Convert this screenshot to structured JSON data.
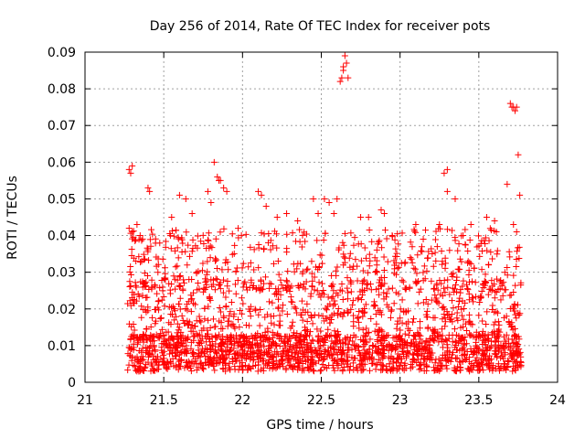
{
  "chart_data": {
    "type": "scatter",
    "title": "Day 256 of 2014, Rate Of TEC Index for receiver pots",
    "xlabel": "GPS time / hours",
    "ylabel": "ROTI / TECUs",
    "xlim": [
      21,
      24
    ],
    "ylim": [
      0,
      0.09
    ],
    "xticks": [
      "21",
      "21.5",
      "22",
      "22.5",
      "23",
      "23.5",
      "24"
    ],
    "yticks": [
      "0",
      "0.01",
      "0.02",
      "0.03",
      "0.04",
      "0.05",
      "0.06",
      "0.07",
      "0.08",
      "0.09"
    ],
    "grid": true,
    "marker": "+",
    "marker_color": "#ff0000",
    "series": [
      {
        "name": "ROTI",
        "points": [
          [
            21.28,
            0.058
          ],
          [
            21.29,
            0.057
          ],
          [
            21.3,
            0.059
          ],
          [
            21.28,
            0.042
          ],
          [
            21.3,
            0.041
          ],
          [
            21.33,
            0.043
          ],
          [
            21.35,
            0.04
          ],
          [
            21.4,
            0.053
          ],
          [
            21.41,
            0.052
          ],
          [
            21.55,
            0.045
          ],
          [
            21.6,
            0.051
          ],
          [
            21.64,
            0.05
          ],
          [
            21.68,
            0.046
          ],
          [
            21.78,
            0.052
          ],
          [
            21.8,
            0.049
          ],
          [
            21.82,
            0.06
          ],
          [
            21.84,
            0.056
          ],
          [
            21.85,
            0.055
          ],
          [
            21.86,
            0.055
          ],
          [
            21.88,
            0.053
          ],
          [
            21.9,
            0.052
          ],
          [
            22.1,
            0.052
          ],
          [
            22.12,
            0.051
          ],
          [
            22.15,
            0.048
          ],
          [
            22.22,
            0.045
          ],
          [
            22.28,
            0.046
          ],
          [
            22.35,
            0.044
          ],
          [
            22.45,
            0.05
          ],
          [
            22.48,
            0.046
          ],
          [
            22.52,
            0.05
          ],
          [
            22.55,
            0.049
          ],
          [
            22.58,
            0.046
          ],
          [
            22.6,
            0.05
          ],
          [
            22.62,
            0.082
          ],
          [
            22.63,
            0.083
          ],
          [
            22.64,
            0.085
          ],
          [
            22.65,
            0.089
          ],
          [
            22.66,
            0.087
          ],
          [
            22.67,
            0.083
          ],
          [
            22.64,
            0.086
          ],
          [
            22.75,
            0.045
          ],
          [
            22.8,
            0.045
          ],
          [
            22.88,
            0.047
          ],
          [
            22.9,
            0.046
          ],
          [
            22.95,
            0.04
          ],
          [
            23.1,
            0.043
          ],
          [
            23.25,
            0.043
          ],
          [
            23.28,
            0.057
          ],
          [
            23.3,
            0.058
          ],
          [
            23.3,
            0.052
          ],
          [
            23.35,
            0.05
          ],
          [
            23.4,
            0.04
          ],
          [
            23.45,
            0.043
          ],
          [
            23.55,
            0.045
          ],
          [
            23.6,
            0.044
          ],
          [
            23.68,
            0.054
          ],
          [
            23.7,
            0.076
          ],
          [
            23.71,
            0.075
          ],
          [
            23.72,
            0.075
          ],
          [
            23.73,
            0.074
          ],
          [
            23.74,
            0.075
          ],
          [
            23.75,
            0.062
          ],
          [
            23.76,
            0.051
          ],
          [
            23.72,
            0.043
          ],
          [
            23.74,
            0.041
          ]
        ]
      }
    ]
  }
}
